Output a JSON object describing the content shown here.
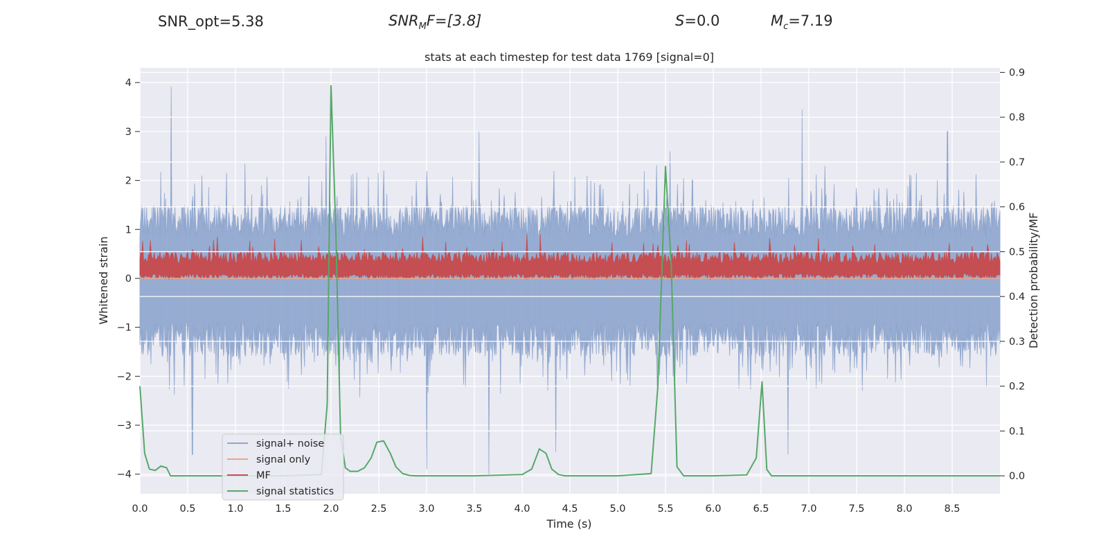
{
  "header": {
    "snr_opt": "SNR_opt=5.38",
    "snr_mf_main": "SNR",
    "snr_mf_sub": "M",
    "snr_mf_rest": "F=[3.8]",
    "s_sym": "S",
    "s_rest": "=0.0",
    "mc_sym": "M",
    "mc_sub": "c",
    "mc_rest": "=7.19"
  },
  "chart_data": {
    "type": "line",
    "title": "stats at each timestep for test data 1769 [signal=0]",
    "xlabel": "Time (s)",
    "ylabel": "Whitened strain",
    "y2label": "Detection probability/MF",
    "xlim": [
      0.0,
      9.0
    ],
    "ylim": [
      -4.4,
      4.3
    ],
    "y2lim": [
      -0.04,
      0.91
    ],
    "xticks": [
      0.0,
      0.5,
      1.0,
      1.5,
      2.0,
      2.5,
      3.0,
      3.5,
      4.0,
      4.5,
      5.0,
      5.5,
      6.0,
      6.5,
      7.0,
      7.5,
      8.0,
      8.5
    ],
    "xtick_labels": [
      "0.0",
      "0.5",
      "1.0",
      "1.5",
      "2.0",
      "2.5",
      "3.0",
      "3.5",
      "4.0",
      "4.5",
      "5.0",
      "5.5",
      "6.0",
      "6.5",
      "7.0",
      "7.5",
      "8.0",
      "8.5"
    ],
    "yticks": [
      4,
      3,
      2,
      1,
      0,
      -1,
      -2,
      -3,
      -4
    ],
    "ytick_labels": [
      "4",
      "3",
      "2",
      "1",
      "0",
      "−1",
      "−2",
      "−3",
      "−4"
    ],
    "y2ticks": [
      0.9,
      0.8,
      0.7,
      0.6,
      0.5,
      0.4,
      0.3,
      0.2,
      0.1,
      0.0
    ],
    "y2tick_labels": [
      "0.9",
      "0.8",
      "0.7",
      "0.6",
      "0.5",
      "0.4",
      "0.3",
      "0.2",
      "0.1",
      "0.0"
    ],
    "legend": {
      "placement": "lower-left",
      "entries": [
        "signal+ noise",
        "signal only",
        "MF",
        "signal statistics"
      ]
    },
    "series": [
      {
        "name": "signal+ noise",
        "axis": "left",
        "color": "#8fa6cd",
        "description": "dense whitened noise trace",
        "envelope": {
          "upper_typical": 1.5,
          "upper_max": 3.92,
          "lower_typical": -1.6,
          "lower_min": -4.0
        },
        "peaks_x": [
          0.33,
          1.95,
          3.55,
          5.55,
          6.93,
          8.45
        ],
        "peaks_y": [
          3.92,
          2.9,
          3.0,
          2.6,
          3.45,
          3.0
        ],
        "dips_x": [
          0.55,
          3.0,
          3.65,
          4.35,
          6.78
        ],
        "dips_y": [
          -3.6,
          -3.9,
          -4.0,
          -3.55,
          -3.6
        ]
      },
      {
        "name": "signal only",
        "axis": "left",
        "color": "#e8a68a",
        "x": [
          0.0,
          9.0
        ],
        "y": [
          0.0,
          0.0
        ]
      },
      {
        "name": "MF",
        "axis": "left",
        "color": "#c44e52",
        "description": "matched-filter band",
        "band_low": 0.0,
        "band_high": 0.55,
        "band_peak": 1.0
      },
      {
        "name": "signal statistics",
        "axis": "right",
        "color": "#55a868",
        "x": [
          0.0,
          0.05,
          0.1,
          0.16,
          0.22,
          0.28,
          0.32,
          0.37,
          0.45,
          0.6,
          1.0,
          1.5,
          1.9,
          1.96,
          2.0,
          2.05,
          2.1,
          2.15,
          2.2,
          2.28,
          2.35,
          2.42,
          2.48,
          2.55,
          2.62,
          2.68,
          2.75,
          2.82,
          2.88,
          2.95,
          3.5,
          4.0,
          4.1,
          4.18,
          4.25,
          4.31,
          4.38,
          4.45,
          4.6,
          5.0,
          5.35,
          5.42,
          5.5,
          5.56,
          5.62,
          5.69,
          5.75,
          5.82,
          6.0,
          6.35,
          6.45,
          6.51,
          6.56,
          6.61,
          6.68,
          7.0,
          8.0,
          9.0
        ],
        "y": [
          0.2,
          0.05,
          0.015,
          0.012,
          0.022,
          0.018,
          0.0,
          0.0,
          0.0,
          0.0,
          0.0,
          0.0,
          0.003,
          0.16,
          0.87,
          0.55,
          0.09,
          0.018,
          0.01,
          0.01,
          0.018,
          0.04,
          0.075,
          0.078,
          0.05,
          0.02,
          0.005,
          0.001,
          0.0,
          0.0,
          0.0,
          0.003,
          0.015,
          0.06,
          0.05,
          0.015,
          0.003,
          0.0,
          0.0,
          0.0,
          0.005,
          0.2,
          0.69,
          0.47,
          0.02,
          0.0,
          0.0,
          0.0,
          0.0,
          0.002,
          0.04,
          0.21,
          0.014,
          0.0,
          0.0,
          0.0,
          0.0,
          0.0
        ]
      }
    ]
  }
}
